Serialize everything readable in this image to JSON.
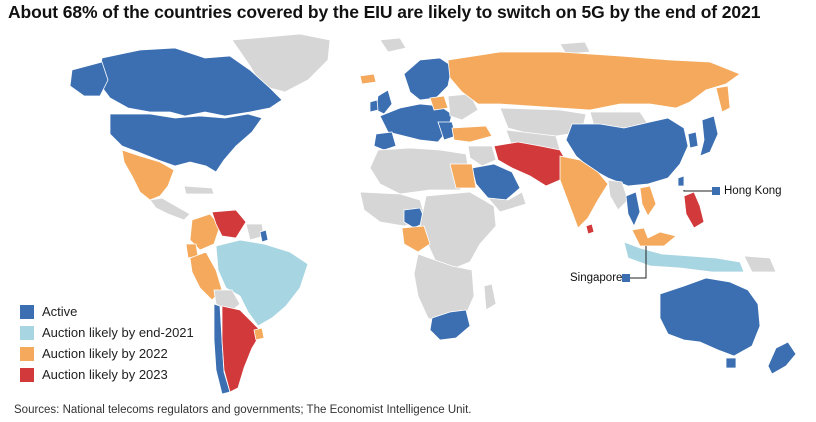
{
  "title": "About 68% of the countries covered by the EIU are likely to switch on 5G by the end of 2021",
  "colors": {
    "active": "#3b6fb2",
    "end2021": "#a8d5e2",
    "y2022": "#f4a95c",
    "y2023": "#d2393a",
    "none": "#d6d6d6",
    "ocean": "#ffffff"
  },
  "legend": [
    {
      "label": "Active",
      "color": "#3b6fb2"
    },
    {
      "label": "Auction likely by end-2021",
      "color": "#a8d5e2"
    },
    {
      "label": "Auction likely by 2022",
      "color": "#f4a95c"
    },
    {
      "label": "Auction likely by 2023",
      "color": "#d2393a"
    }
  ],
  "callouts": {
    "hong_kong": "Hong Kong",
    "singapore": "Singapore"
  },
  "source": "Sources: National telecoms regulators and governments; The Economist Intelligence Unit."
}
